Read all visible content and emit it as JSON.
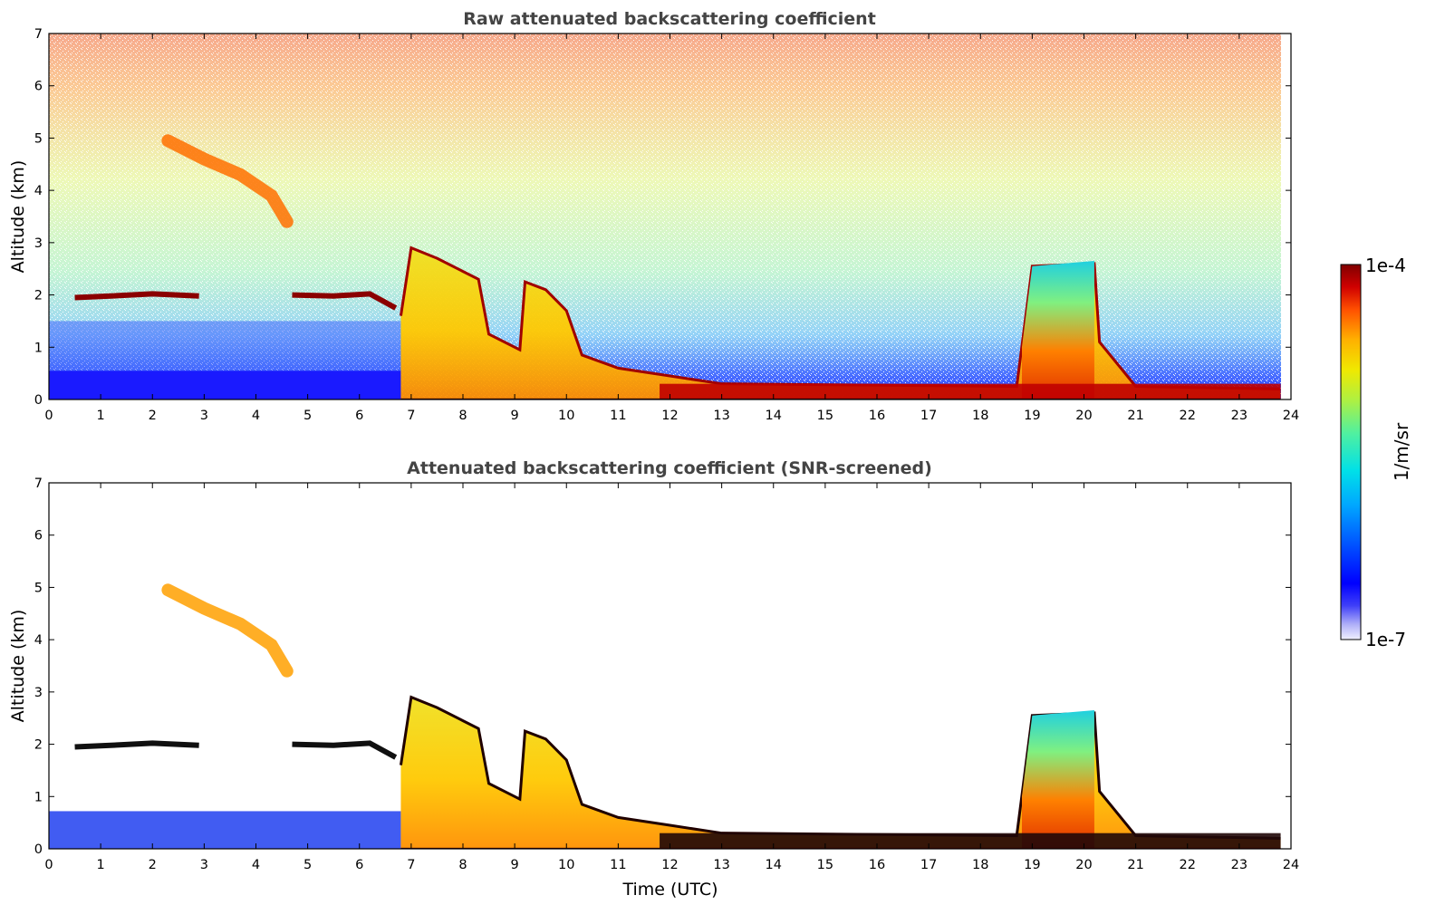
{
  "chart_data": [
    {
      "type": "heatmap",
      "title": "Raw attenuated backscattering coefficient",
      "xlabel": "",
      "ylabel": "Altitude (km)",
      "xlim": [
        0,
        24
      ],
      "ylim": [
        0,
        7
      ],
      "x_ticks": [
        "0",
        "1",
        "2",
        "3",
        "4",
        "5",
        "6",
        "7",
        "8",
        "9",
        "10",
        "11",
        "12",
        "13",
        "14",
        "15",
        "16",
        "17",
        "18",
        "19",
        "20",
        "21",
        "22",
        "23",
        "24"
      ],
      "y_ticks": [
        "0",
        "1",
        "2",
        "3",
        "4",
        "5",
        "6",
        "7"
      ],
      "features": {
        "cloud_layer_2km": [
          [
            0.5,
            1.95
          ],
          [
            1.0,
            1.97
          ],
          [
            2.0,
            2.02
          ],
          [
            2.9,
            1.98
          ],
          [
            4.7,
            2.0
          ],
          [
            5.5,
            1.98
          ],
          [
            6.2,
            2.02
          ],
          [
            6.7,
            1.75
          ]
        ],
        "cirrus_descending": [
          [
            2.3,
            4.95
          ],
          [
            3.0,
            4.6
          ],
          [
            3.7,
            4.3
          ],
          [
            4.3,
            3.9
          ],
          [
            4.6,
            3.4
          ]
        ],
        "aerosol_top_curve": [
          [
            6.8,
            1.6
          ],
          [
            7.0,
            2.9
          ],
          [
            7.5,
            2.7
          ],
          [
            8.0,
            2.45
          ],
          [
            8.3,
            2.3
          ],
          [
            8.5,
            1.25
          ],
          [
            9.1,
            0.95
          ],
          [
            9.2,
            2.25
          ],
          [
            9.6,
            2.1
          ],
          [
            10.0,
            1.7
          ],
          [
            10.3,
            0.85
          ],
          [
            11.0,
            0.6
          ],
          [
            12.0,
            0.45
          ],
          [
            13.0,
            0.3
          ],
          [
            18.7,
            0.25
          ],
          [
            19.0,
            2.55
          ],
          [
            20.2,
            2.6
          ],
          [
            20.3,
            1.1
          ],
          [
            21.0,
            0.25
          ],
          [
            23.8,
            0.2
          ]
        ],
        "low_clutter_region_end_h": 6.8,
        "convective_column": [
          18.8,
          20.2
        ]
      }
    },
    {
      "type": "heatmap",
      "title": "Attenuated backscattering coefficient (SNR-screened)",
      "xlabel": "Time (UTC)",
      "ylabel": "Altitude (km)",
      "xlim": [
        0,
        24
      ],
      "ylim": [
        0,
        7
      ],
      "x_ticks": [
        "0",
        "1",
        "2",
        "3",
        "4",
        "5",
        "6",
        "7",
        "8",
        "9",
        "10",
        "11",
        "12",
        "13",
        "14",
        "15",
        "16",
        "17",
        "18",
        "19",
        "20",
        "21",
        "22",
        "23",
        "24"
      ],
      "y_ticks": [
        "0",
        "1",
        "2",
        "3",
        "4",
        "5",
        "6",
        "7"
      ]
    }
  ],
  "colorbar": {
    "label": "1/m/sr",
    "max_label": "1e-4",
    "min_label": "1e-7",
    "colormap": [
      "#f0f0ff",
      "#b0b0f8",
      "#4040f8",
      "#0000ff",
      "#0040ff",
      "#0090ff",
      "#00d0f0",
      "#20e8c0",
      "#60f080",
      "#a0f040",
      "#e0f000",
      "#ffd000",
      "#ff9000",
      "#ff4000",
      "#e00000",
      "#8b0000"
    ]
  }
}
